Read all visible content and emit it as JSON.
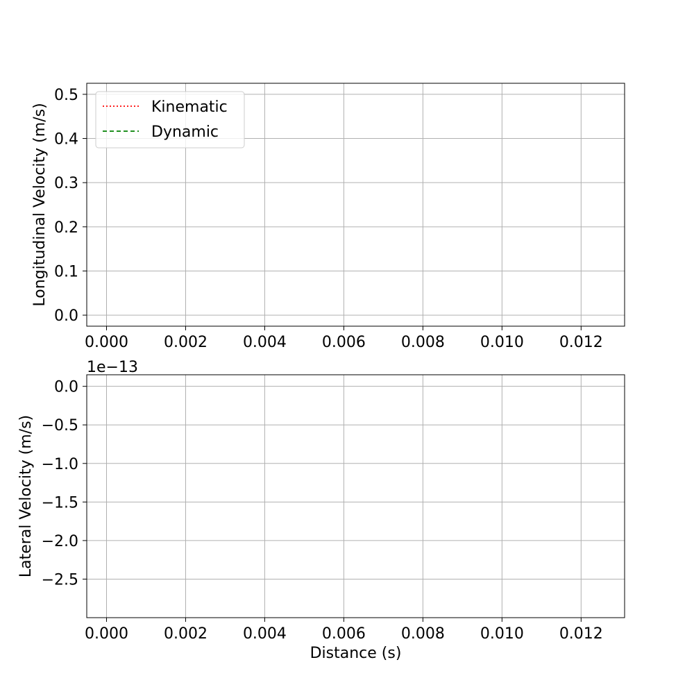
{
  "chart_data": [
    {
      "type": "line",
      "xlabel": "",
      "ylabel": "Longitudinal Velocity (m/s)",
      "xlim": [
        -0.0005,
        0.0131
      ],
      "ylim": [
        -0.025,
        0.525
      ],
      "xticks": [
        0.0,
        0.002,
        0.004,
        0.006,
        0.008,
        0.01,
        0.012
      ],
      "xtick_labels": [
        "0.000",
        "0.002",
        "0.004",
        "0.006",
        "0.008",
        "0.010",
        "0.012"
      ],
      "yticks": [
        0.0,
        0.1,
        0.2,
        0.3,
        0.4,
        0.5
      ],
      "ytick_labels": [
        "0.0",
        "0.1",
        "0.2",
        "0.3",
        "0.4",
        "0.5"
      ],
      "offset_text": "",
      "grid": true,
      "legend": {
        "placement": "top-left",
        "entries": [
          {
            "name": "Kinematic",
            "color": "#ff0000",
            "style": "dotted"
          },
          {
            "name": "Dynamic",
            "color": "#008000",
            "style": "dashed"
          }
        ]
      },
      "series": [
        {
          "name": "Kinematic",
          "x": [],
          "values": []
        },
        {
          "name": "Dynamic",
          "x": [],
          "values": []
        }
      ]
    },
    {
      "type": "line",
      "xlabel": "Distance (s)",
      "ylabel": "Lateral Velocity (m/s)",
      "xlim": [
        -0.0005,
        0.0131
      ],
      "ylim": [
        -3.0,
        0.15
      ],
      "xticks": [
        0.0,
        0.002,
        0.004,
        0.006,
        0.008,
        0.01,
        0.012
      ],
      "xtick_labels": [
        "0.000",
        "0.002",
        "0.004",
        "0.006",
        "0.008",
        "0.010",
        "0.012"
      ],
      "yticks": [
        0.0,
        -0.5,
        -1.0,
        -1.5,
        -2.0,
        -2.5
      ],
      "ytick_labels": [
        "0.0",
        "−0.5",
        "−1.0",
        "−1.5",
        "−2.0",
        "−2.5"
      ],
      "offset_text": "1e−13",
      "grid": true,
      "legend": null,
      "series": []
    }
  ]
}
